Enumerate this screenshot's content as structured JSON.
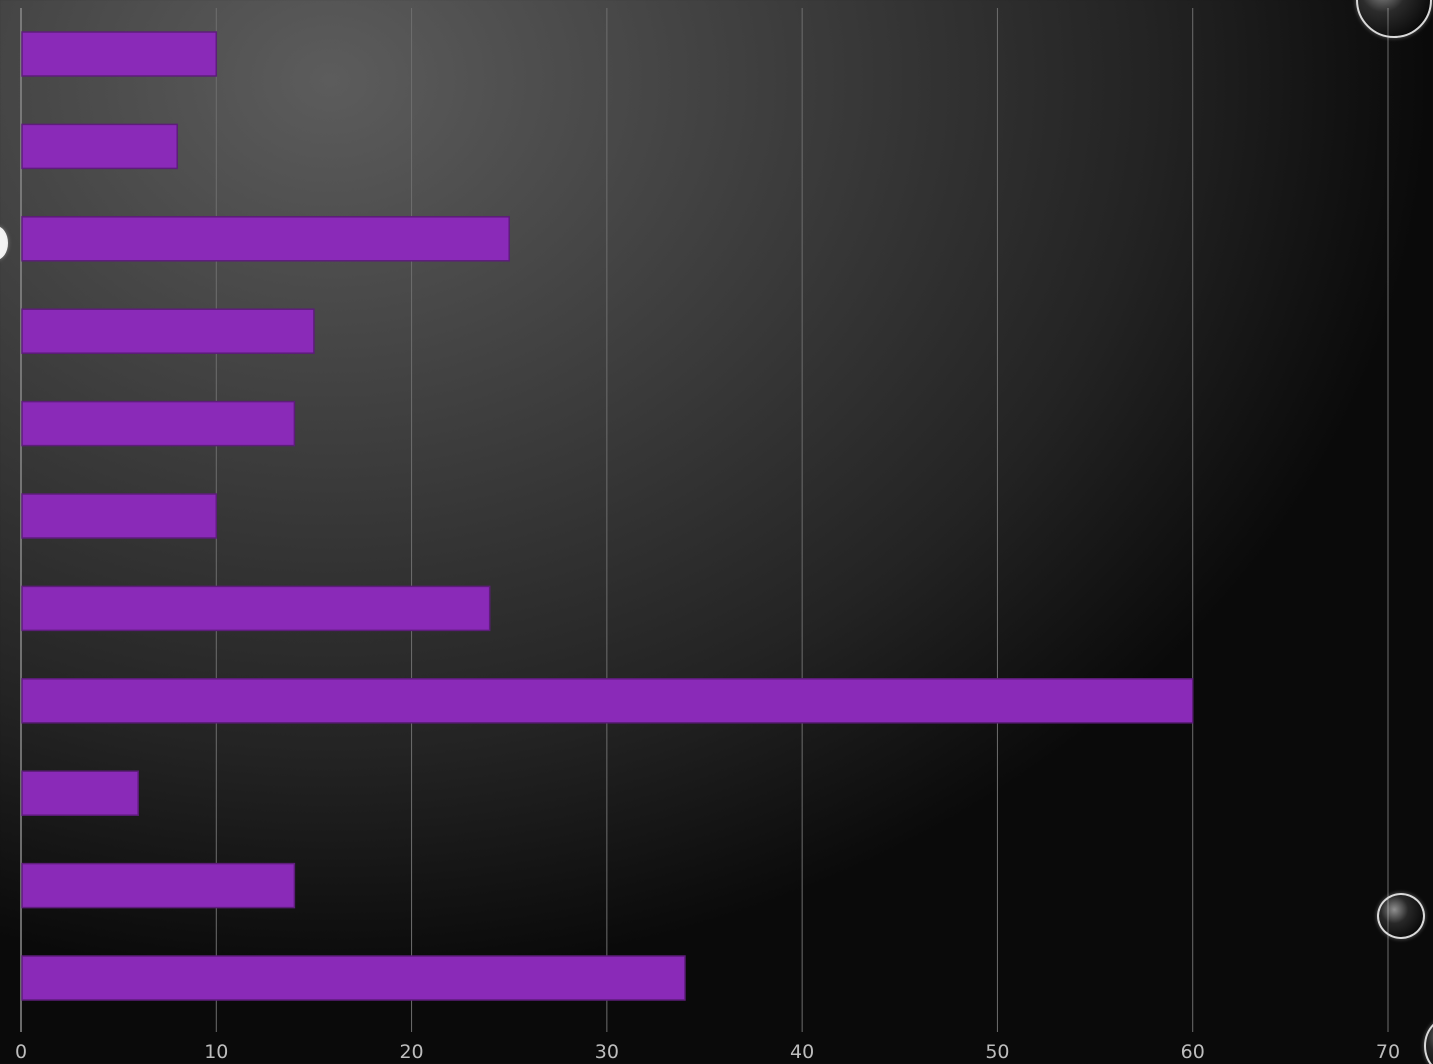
{
  "chart_data": {
    "type": "bar",
    "orientation": "horizontal",
    "values": [
      10,
      8,
      25,
      15,
      14,
      10,
      24,
      60,
      6,
      14,
      34
    ],
    "xlim": [
      0,
      70
    ],
    "x_ticks": [
      "0",
      "10",
      "20",
      "30",
      "40",
      "50",
      "60",
      "70"
    ],
    "grid": true,
    "bar_color": "#8a2ab8",
    "background": "dark-radial-gradient"
  }
}
